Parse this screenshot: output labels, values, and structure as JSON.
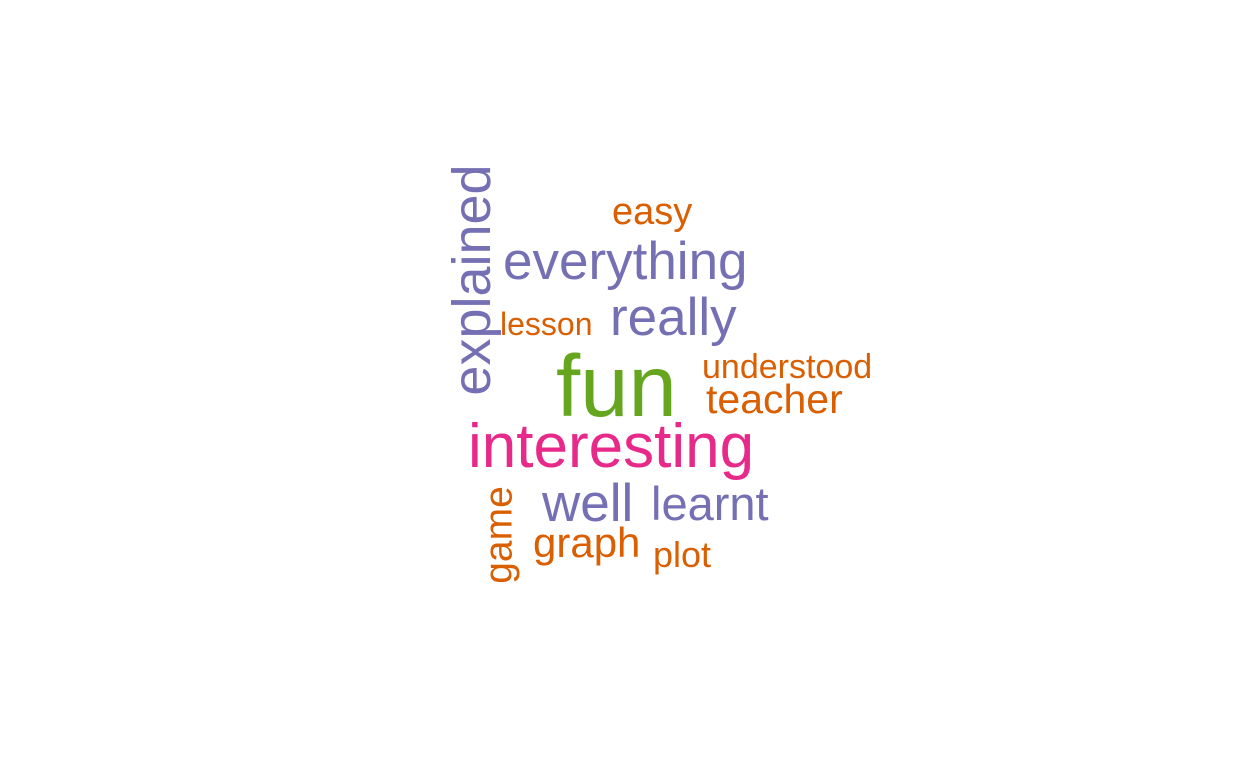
{
  "words": {
    "fun": "fun",
    "interesting": "interesting",
    "everything": "everything",
    "really": "really",
    "explained": "explained",
    "well": "well",
    "learnt": "learnt",
    "easy": "easy",
    "lesson": "lesson",
    "understood": "understood",
    "teacher": "teacher",
    "game": "game",
    "graph": "graph",
    "plot": "plot"
  },
  "colors": {
    "purple": "#7570b3",
    "orange": "#d95f02",
    "green": "#66a61e",
    "pink": "#e7298a"
  }
}
